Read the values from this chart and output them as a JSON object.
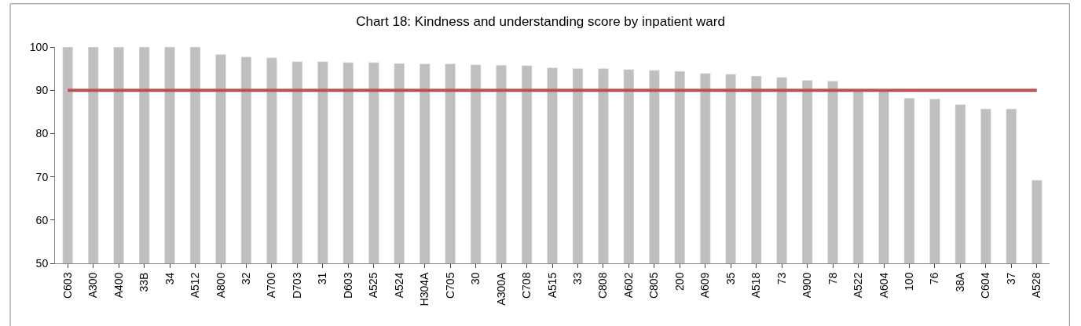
{
  "chart_data": {
    "type": "bar",
    "title": "Chart 18: Kindness and understanding score by inpatient ward",
    "categories": [
      "C603",
      "A300",
      "A400",
      "33B",
      "34",
      "A512",
      "A800",
      "32",
      "A700",
      "D703",
      "31",
      "D603",
      "A525",
      "A524",
      "H304A",
      "C705",
      "30",
      "A300A",
      "C708",
      "A515",
      "33",
      "C808",
      "A602",
      "C805",
      "200",
      "A609",
      "35",
      "A518",
      "73",
      "A900",
      "78",
      "A522",
      "A604",
      "100",
      "76",
      "38A",
      "C604",
      "37",
      "A528"
    ],
    "series": [
      {
        "color": "#bfbfbf",
        "values": [
          100,
          100,
          100,
          100,
          100,
          100,
          98.3,
          97.7,
          97.5,
          96.6,
          96.6,
          96.4,
          96.4,
          96.2,
          96.1,
          96.1,
          95.9,
          95.8,
          95.7,
          95.2,
          95.0,
          95.0,
          94.8,
          94.6,
          94.4,
          93.9,
          93.7,
          93.3,
          93.0,
          92.3,
          92.1,
          89.9,
          89.9,
          88.2,
          88.0,
          86.7,
          85.7,
          85.7,
          69.2
        ]
      },
      {
        "type": "line",
        "color": "#c0504d",
        "values": [
          90,
          90,
          90,
          90,
          90,
          90,
          90,
          90,
          90,
          90,
          90,
          90,
          90,
          90,
          90,
          90,
          90,
          90,
          90,
          90,
          90,
          90,
          90,
          90,
          90,
          90,
          90,
          90,
          90,
          90,
          90,
          90,
          90,
          90,
          90,
          90,
          90,
          90,
          90
        ]
      }
    ],
    "ylim": [
      50,
      100
    ],
    "yticks": [
      50,
      60,
      70,
      80,
      90,
      100
    ]
  }
}
